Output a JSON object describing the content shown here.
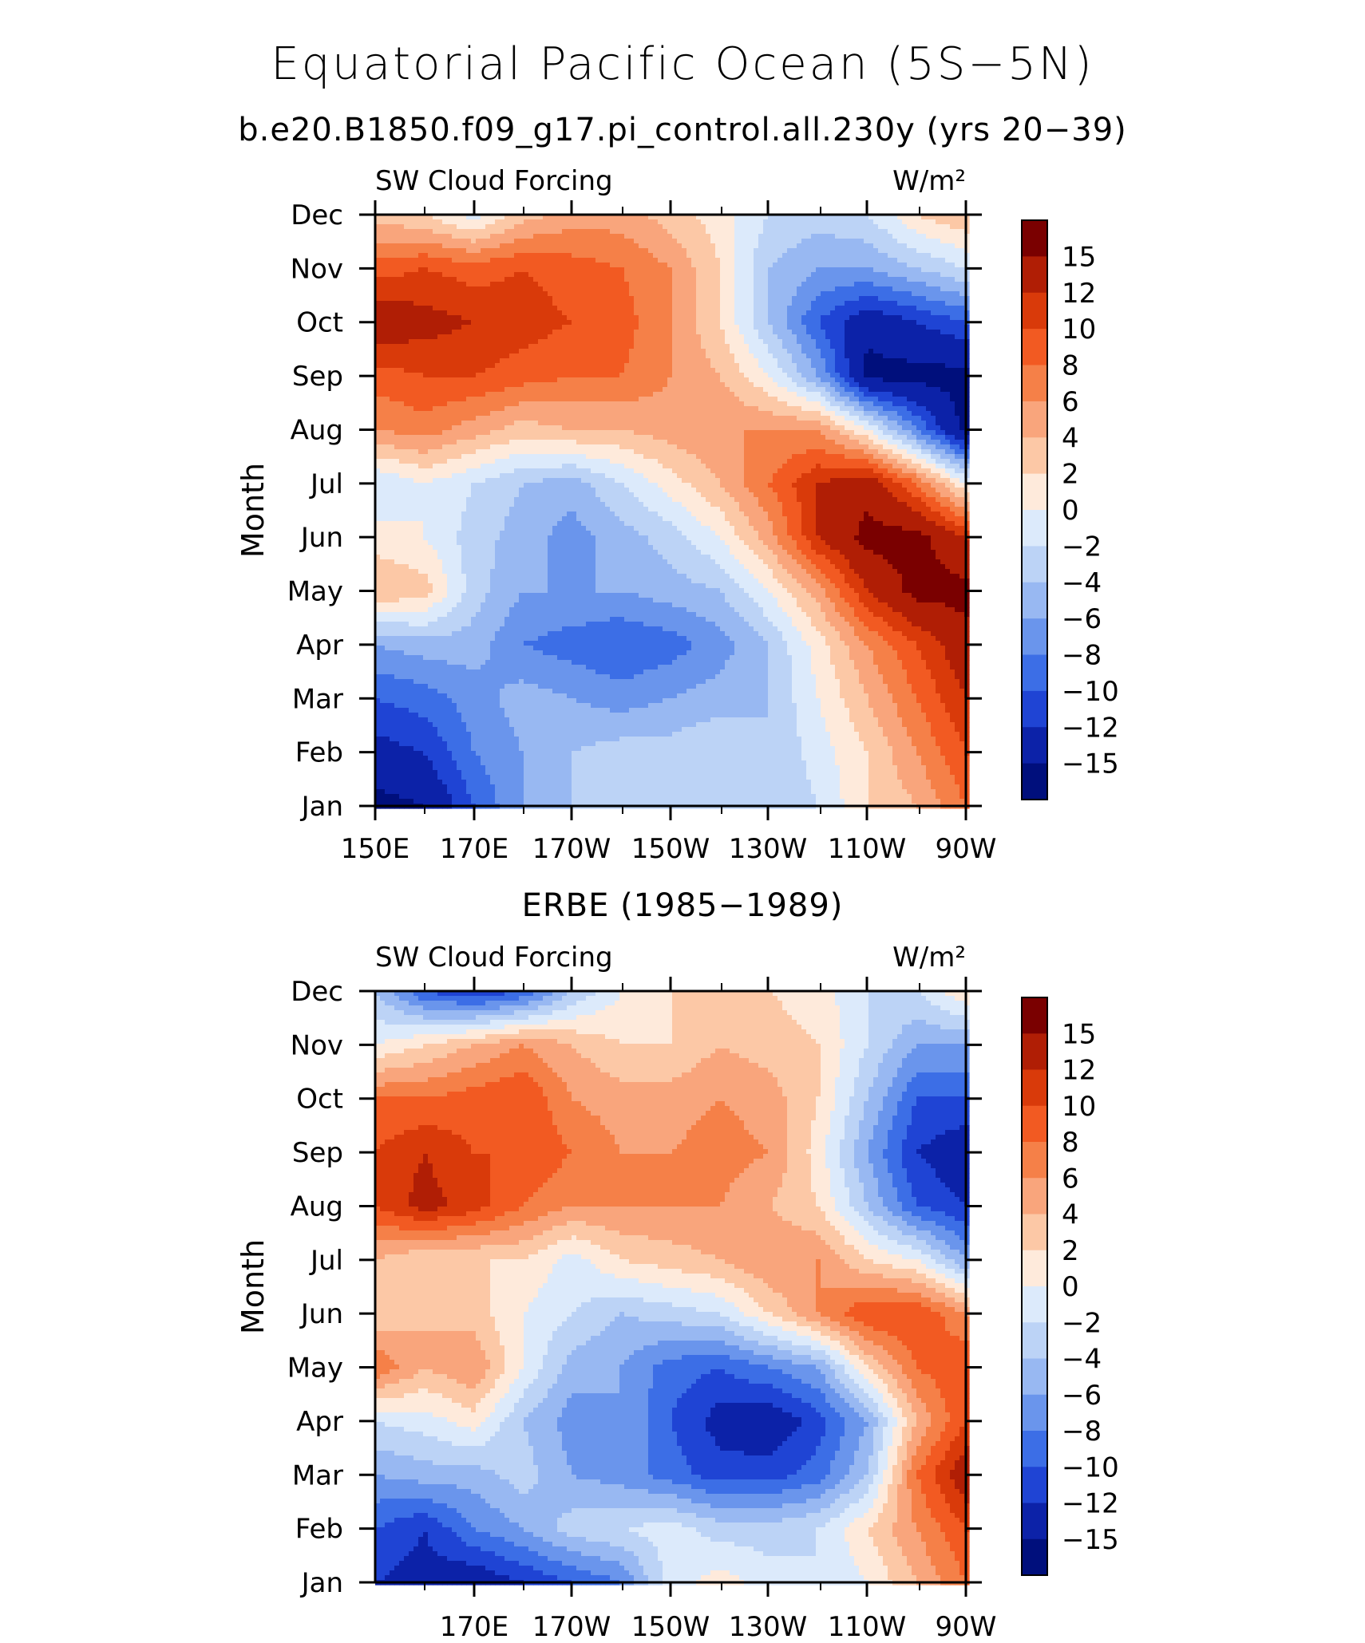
{
  "title": "Equatorial Pacific Ocean (5S−5N)",
  "subtitle": "b.e20.B1850.f09_g17.pi_control.all.230y (yrs 20−39)",
  "colorscale": {
    "labels": [
      "15",
      "12",
      "10",
      "8",
      "6",
      "4",
      "2",
      "0",
      "−2",
      "−4",
      "−6",
      "−8",
      "−10",
      "−12",
      "−15"
    ],
    "colors": [
      "#7a0000",
      "#b01e05",
      "#d93a0a",
      "#f25a22",
      "#f58048",
      "#f9a57c",
      "#fcc8a6",
      "#feeadb",
      "#dceafb",
      "#bcd3f6",
      "#98b8f2",
      "#6a95ec",
      "#3c6ee6",
      "#1f44d4",
      "#0c22a8",
      "#000f7c"
    ],
    "levels": [
      15,
      12,
      10,
      8,
      6,
      4,
      2,
      0,
      -2,
      -4,
      -6,
      -8,
      -10,
      -12,
      -15
    ]
  },
  "chart_data": [
    {
      "type": "heatmap",
      "panel_title": "",
      "left_label": "SW Cloud Forcing",
      "right_label": "W/m²",
      "ylabel": "Month",
      "xticklabels": [
        "150E",
        "170E",
        "170W",
        "150W",
        "130W",
        "110W",
        "90W"
      ],
      "months": [
        "Jan",
        "Feb",
        "Mar",
        "Apr",
        "May",
        "Jun",
        "Jul",
        "Aug",
        "Sep",
        "Oct",
        "Nov",
        "Dec"
      ],
      "x": [
        "150E",
        "160E",
        "170E",
        "180",
        "170W",
        "160W",
        "150W",
        "140W",
        "130W",
        "120W",
        "110W",
        "100W",
        "90W"
      ],
      "values": [
        [
          -16,
          -15,
          -10,
          -6,
          -4,
          -4,
          -4,
          -4,
          -4,
          -2,
          2,
          4,
          8
        ],
        [
          -13,
          -12,
          -8,
          -6,
          -4,
          -3,
          -3,
          -2,
          -4,
          -1,
          2,
          6,
          10
        ],
        [
          -10,
          -9,
          -7,
          -5,
          -6,
          -7,
          -6,
          -5,
          -4,
          0,
          4,
          8,
          12
        ],
        [
          -6,
          -5,
          -5,
          -8,
          -9,
          -10,
          -9,
          -7,
          -4,
          1,
          6,
          10,
          14
        ],
        [
          4,
          3,
          -3,
          -6,
          -6,
          -6,
          -5,
          -4,
          0,
          5,
          12,
          16,
          16
        ],
        [
          1,
          0,
          -3,
          -5,
          -7,
          -5,
          -3,
          0,
          5,
          12,
          16,
          16,
          12
        ],
        [
          -2,
          0,
          -2,
          -4,
          -5,
          -2,
          1,
          4,
          8,
          12,
          14,
          8,
          0
        ],
        [
          6,
          7,
          5,
          3,
          4,
          4,
          5,
          6,
          6,
          6,
          0,
          -8,
          -16
        ],
        [
          9,
          10,
          10,
          9,
          8,
          8,
          6,
          4,
          0,
          -6,
          -16,
          -16,
          -16
        ],
        [
          14,
          13,
          12,
          11,
          10,
          9,
          6,
          2,
          -4,
          -10,
          -14,
          -12,
          -10
        ],
        [
          9,
          10,
          9,
          10,
          9,
          8,
          6,
          2,
          -4,
          -6,
          -6,
          -4,
          -2
        ],
        [
          3,
          2,
          -1,
          3,
          5,
          5,
          3,
          1,
          -2,
          -3,
          -2,
          2,
          4
        ]
      ]
    },
    {
      "type": "heatmap",
      "panel_title": "ERBE (1985−1989)",
      "left_label": "SW Cloud Forcing",
      "right_label": "W/m²",
      "ylabel": "Month",
      "xticklabels": [
        "170E",
        "170W",
        "150W",
        "130W",
        "110W",
        "90W"
      ],
      "months": [
        "Jan",
        "Feb",
        "Mar",
        "Apr",
        "May",
        "Jun",
        "Jul",
        "Aug",
        "Sep",
        "Oct",
        "Nov",
        "Dec"
      ],
      "x": [
        "150E",
        "160E",
        "170E",
        "180",
        "170W",
        "160W",
        "150W",
        "140W",
        "130W",
        "120W",
        "110W",
        "100W",
        "90W"
      ],
      "values": [
        [
          -12,
          -13,
          -14,
          -12,
          -10,
          -8,
          -1,
          1,
          -1,
          -2,
          0,
          4,
          8
        ],
        [
          -10,
          -12,
          -8,
          -6,
          -3,
          -2,
          -1,
          -3,
          -3,
          -2,
          2,
          6,
          10
        ],
        [
          -6,
          -5,
          -5,
          -3,
          -6,
          -7,
          -9,
          -11,
          -11,
          -9,
          -4,
          8,
          14
        ],
        [
          -2,
          -1,
          1,
          -4,
          -7,
          -6,
          -10,
          -13,
          -14,
          -11,
          -6,
          4,
          10
        ],
        [
          8,
          4,
          6,
          0,
          -5,
          -6,
          -9,
          -10,
          -8,
          -6,
          2,
          8,
          10
        ],
        [
          2,
          4,
          3,
          0,
          -2,
          -4,
          -3,
          -2,
          2,
          6,
          10,
          10,
          6
        ],
        [
          4,
          2,
          2,
          2,
          -1,
          2,
          3,
          4,
          6,
          6,
          2,
          0,
          -6
        ],
        [
          10,
          13,
          11,
          8,
          6,
          6,
          6,
          6,
          4,
          2,
          -4,
          -10,
          -12
        ],
        [
          10,
          12,
          10,
          10,
          8,
          6,
          6,
          7,
          6,
          1,
          -6,
          -12,
          -14
        ],
        [
          8,
          8,
          9,
          10,
          6,
          5,
          5,
          6,
          5,
          2,
          -4,
          -10,
          -10
        ],
        [
          0,
          2,
          4,
          6,
          4,
          2,
          2,
          4,
          3,
          2,
          -2,
          -6,
          -6
        ],
        [
          -4,
          -10,
          -12,
          -10,
          -4,
          0,
          2,
          2,
          2,
          1,
          -2,
          -2,
          2
        ]
      ]
    }
  ]
}
